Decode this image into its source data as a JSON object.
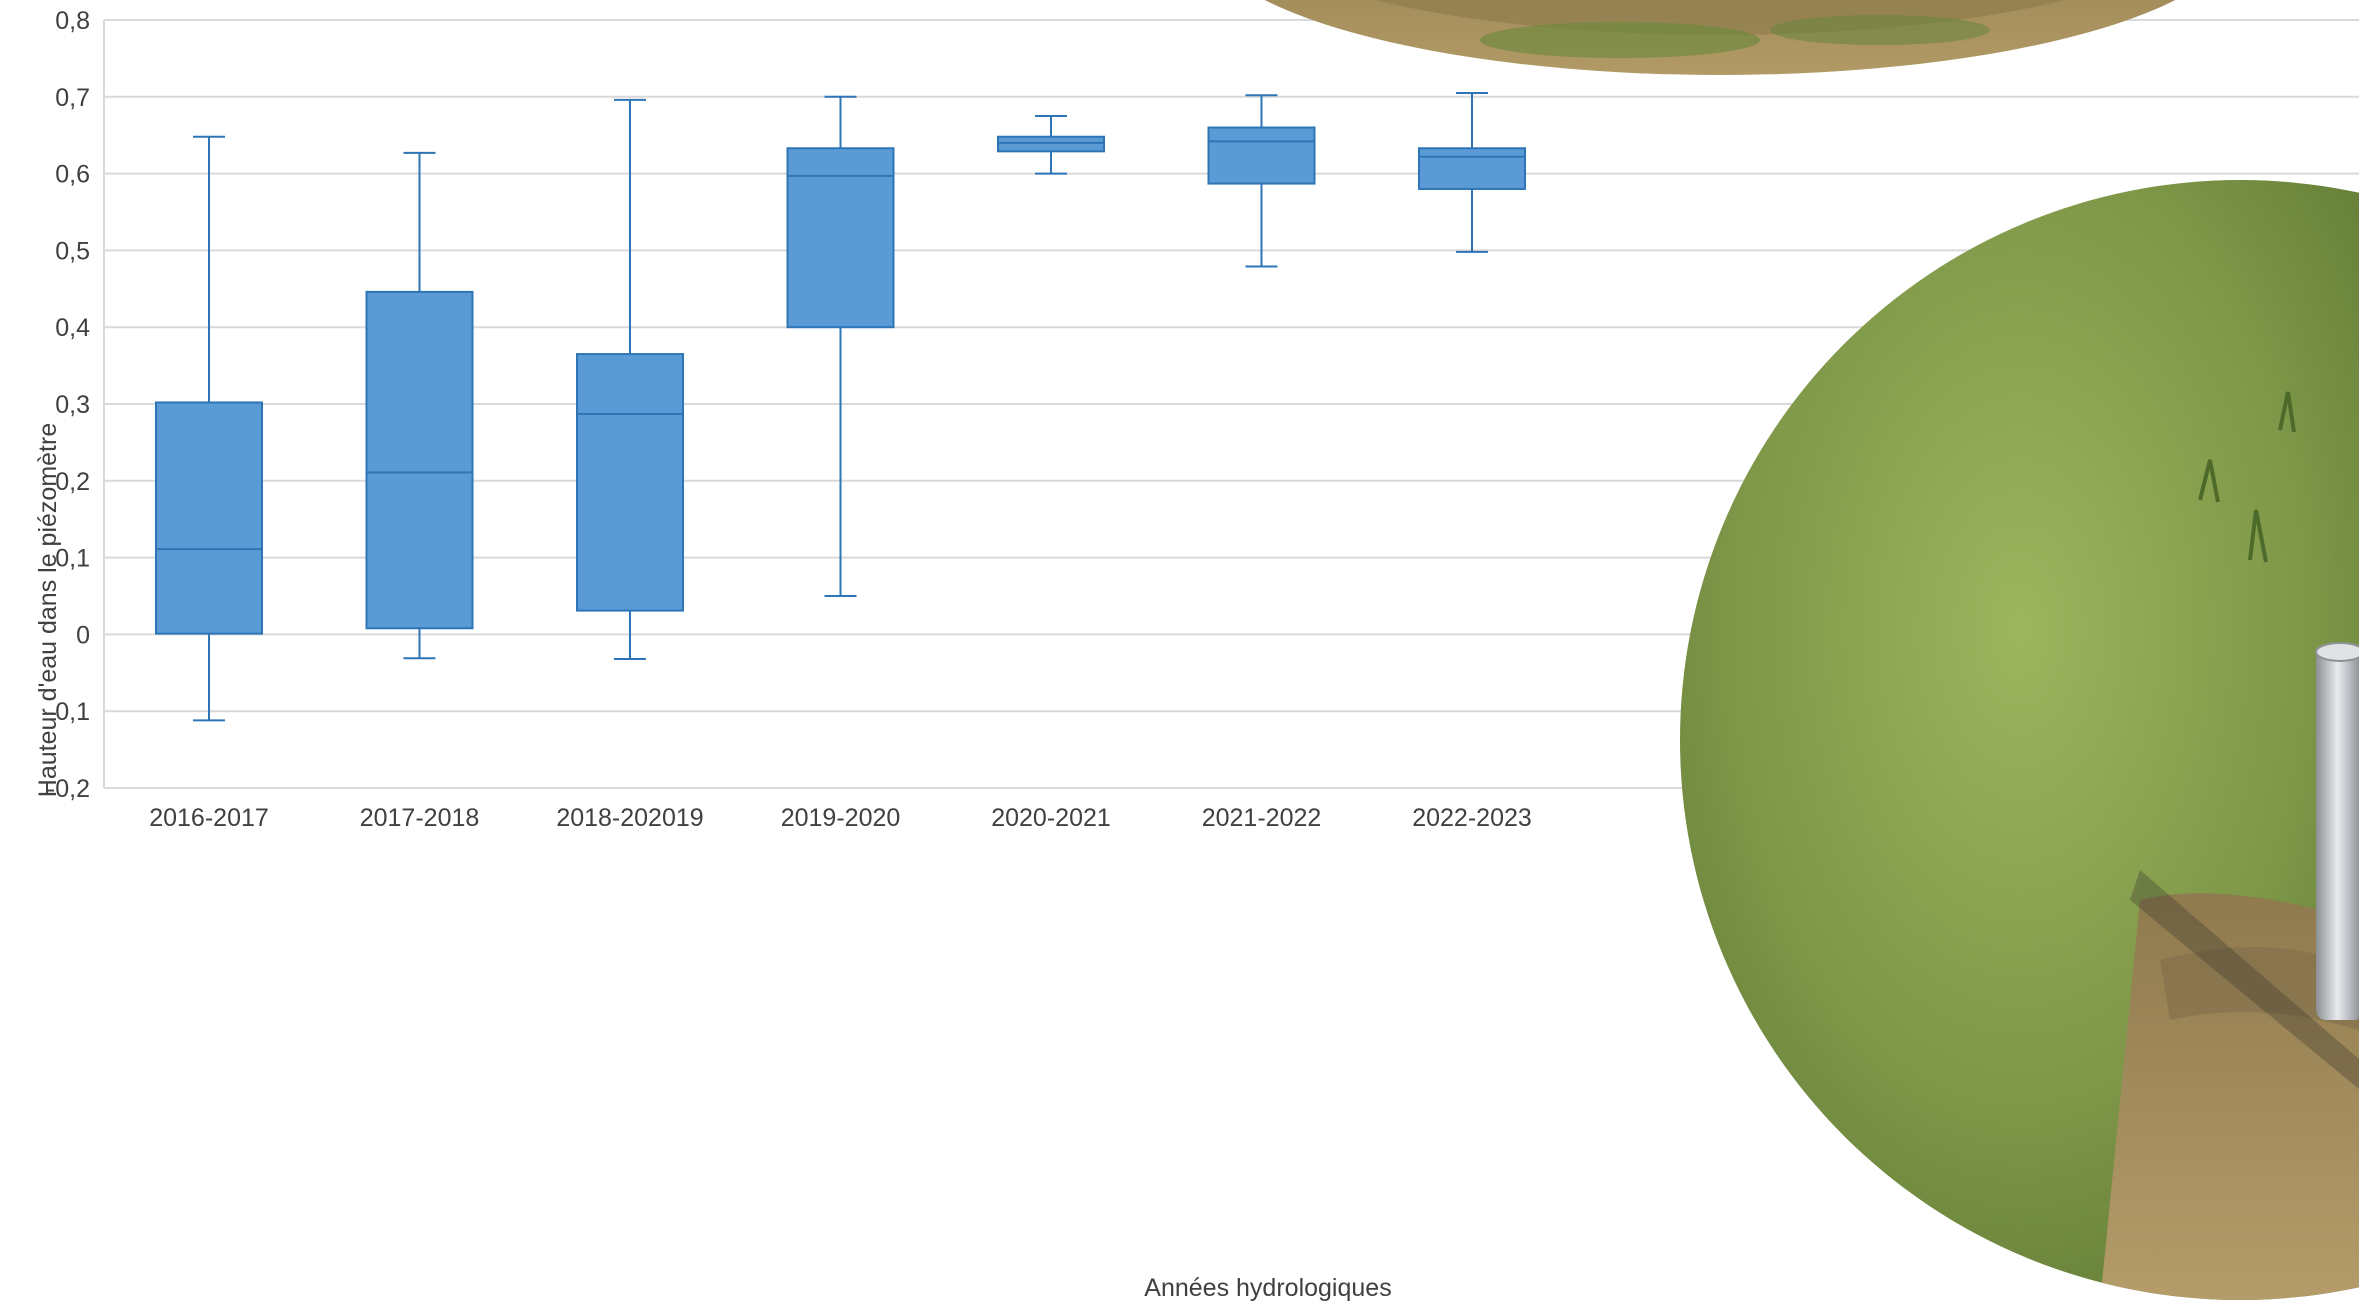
{
  "chart_data": {
    "type": "box",
    "title": "",
    "xlabel": "Années hydrologiques",
    "ylabel": "Hauteur d'eau dans le piézomètre",
    "ylim": [
      -0.2,
      0.8
    ],
    "y_ticks": [
      "-0,2",
      "-0,1",
      "0",
      "0,1",
      "0,2",
      "0,3",
      "0,4",
      "0,5",
      "0,6",
      "0,7",
      "0,8"
    ],
    "grid": true,
    "legend": "none",
    "colors": {
      "box_fill": "#5b9bd5",
      "box_stroke": "#2e75b6",
      "grid": "#d9d9d9",
      "text": "#404040",
      "photo_grass": "#7a9a4a",
      "photo_soil": "#a08050"
    },
    "categories": [
      "2016-2017",
      "2017-2018",
      "2018-202019",
      "2019-2020",
      "2020-2021",
      "2021-2022",
      "2022-2023"
    ],
    "series": [
      {
        "min": [
          -0.112,
          -0.031,
          -0.032,
          0.05,
          0.6,
          0.479,
          0.498
        ],
        "q1": [
          0.001,
          0.008,
          0.031,
          0.4,
          0.629,
          0.587,
          0.58
        ],
        "median": [
          0.111,
          0.211,
          0.287,
          0.597,
          0.64,
          0.642,
          0.622
        ],
        "q3": [
          0.302,
          0.446,
          0.365,
          0.633,
          0.648,
          0.66,
          0.633
        ],
        "max": [
          0.648,
          0.627,
          0.696,
          0.7,
          0.675,
          0.702,
          0.705
        ]
      }
    ]
  },
  "photos": {
    "top": "grass-field-photo",
    "right": "piezometer-tube-photo"
  }
}
